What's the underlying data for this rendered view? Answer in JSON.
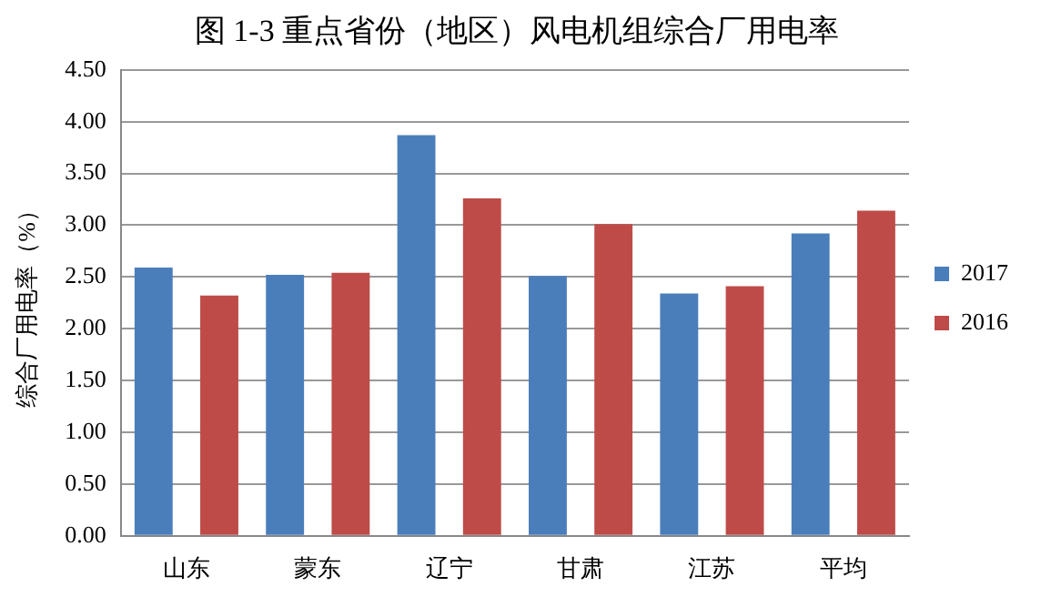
{
  "chart_data": {
    "type": "bar",
    "title": "图 1-3 重点省份（地区）风电机组综合厂用电率",
    "ylabel": "综合厂用电率（%）",
    "categories": [
      "山东",
      "蒙东",
      "辽宁",
      "甘肃",
      "江苏",
      "平均"
    ],
    "series": [
      {
        "name": "2017",
        "color": "#4a7ebb",
        "values": [
          2.59,
          2.52,
          3.87,
          2.51,
          2.34,
          2.92
        ]
      },
      {
        "name": "2016",
        "color": "#be4b48",
        "values": [
          2.32,
          2.54,
          3.26,
          3.01,
          2.41,
          3.14
        ]
      }
    ],
    "ylim": [
      0,
      4.5
    ],
    "yticks": [
      {
        "value": 0,
        "label": "0.00"
      },
      {
        "value": 0.5,
        "label": "0.50"
      },
      {
        "value": 1,
        "label": "1.00"
      },
      {
        "value": 1.5,
        "label": "1.50"
      },
      {
        "value": 2,
        "label": "2.00"
      },
      {
        "value": 2.5,
        "label": "2.50"
      },
      {
        "value": 3,
        "label": "3.00"
      },
      {
        "value": 3.5,
        "label": "3.50"
      },
      {
        "value": 4,
        "label": "4.00"
      },
      {
        "value": 4.5,
        "label": "4.50"
      }
    ],
    "grid": "y",
    "legend": "right"
  }
}
